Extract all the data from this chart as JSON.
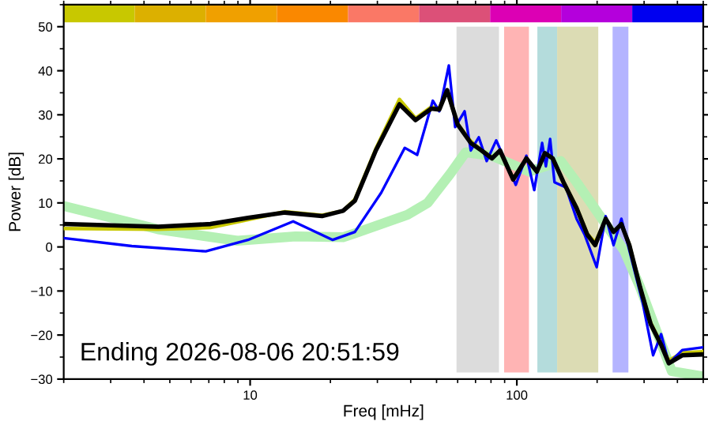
{
  "chart_data": {
    "type": "line",
    "xlabel": "Freq [mHz]",
    "ylabel": "Power [dB]",
    "annotations": [
      "Ending 2026-08-06 20:51:59"
    ],
    "log": "x",
    "xlim": [
      2,
      500
    ],
    "xticks": [
      10,
      100
    ],
    "ylim": [
      -30,
      55
    ],
    "yticks": [
      -30,
      -20,
      -10,
      0,
      10,
      20,
      30,
      40,
      50
    ],
    "grid": false,
    "legend": false,
    "marker": "none",
    "line_style": "solid",
    "bands": [
      {
        "axis": "x",
        "from": 2,
        "to": 3.69,
        "color": "#c8c800"
      },
      {
        "axis": "x",
        "from": 3.69,
        "to": 6.82,
        "color": "#dcb000"
      },
      {
        "axis": "x",
        "from": 6.82,
        "to": 12.6,
        "color": "#f0a000"
      },
      {
        "axis": "x",
        "from": 12.6,
        "to": 23.3,
        "color": "#fa8800"
      },
      {
        "axis": "x",
        "from": 23.3,
        "to": 43.0,
        "color": "#fa7866"
      },
      {
        "axis": "x",
        "from": 43.0,
        "to": 79.4,
        "color": "#dc5078"
      },
      {
        "axis": "x",
        "from": 79.4,
        "to": 146.6,
        "color": "#dc00b4"
      },
      {
        "axis": "x",
        "from": 146.6,
        "to": 270.8,
        "color": "#b400dc"
      },
      {
        "axis": "x",
        "from": 270.8,
        "to": 500,
        "color": "#0000f0"
      },
      {
        "axis": "x",
        "from": 59.4,
        "to": 85.7,
        "color": "#dcdcdc"
      },
      {
        "axis": "x",
        "from": 89.6,
        "to": 111,
        "color": "#ffb4b4"
      },
      {
        "axis": "x",
        "from": 119.4,
        "to": 141.6,
        "color": "#b4dcdc"
      },
      {
        "axis": "x",
        "from": 141.6,
        "to": 202,
        "color": "#dcdcb4"
      },
      {
        "axis": "x",
        "from": 228.6,
        "to": 262,
        "color": "#b4b4ff"
      }
    ],
    "series": [
      {
        "color": "#b4f0b4",
        "x": [
          2.0,
          4.52,
          8.96,
          14.8,
          22.3,
          24.7,
          38.9,
          46.3,
          56.1,
          64.3,
          80.7,
          111.2,
          146.2,
          167.5,
          208.5,
          252.5,
          289.6,
          332,
          381,
          500
        ],
        "values": [
          9.3,
          4.0,
          1.4,
          2.4,
          2.2,
          3.1,
          7.3,
          10,
          16.5,
          21.5,
          20.7,
          17.1,
          19.5,
          14.7,
          6.4,
          -0.8,
          -9.1,
          -18.7,
          -28.2,
          -29.4
        ]
      },
      {
        "color": "#c8c800",
        "x": [
          2.0,
          4.52,
          7.1,
          9.82,
          13.5,
          18.6,
          22.3,
          24.7,
          29.6,
          36.3,
          41.7,
          47.8,
          51.2,
          54.8,
          60.0,
          67.2,
          73.7,
          80.7,
          86.5,
          96.9,
          108.6,
          118.9,
          127.4,
          136.4,
          149.6,
          167.5,
          183.7,
          196.6,
          215.3,
          230.5,
          246.6,
          264.2,
          289.6,
          317.5,
          347.5,
          371.5,
          417,
          495
        ],
        "values": [
          4.2,
          4.0,
          4.4,
          6.2,
          8.0,
          7.2,
          8.2,
          10.8,
          22.3,
          33.5,
          29.2,
          31.8,
          31.5,
          35.2,
          28.0,
          24.0,
          22.0,
          20.3,
          21.8,
          15.5,
          20.0,
          17.0,
          21.0,
          20.0,
          14.8,
          9.0,
          3.0,
          1.0,
          6.2,
          3.6,
          5.0,
          0.6,
          -9.0,
          -17.2,
          -22.0,
          -25.8,
          -24.0,
          -23.8
        ]
      },
      {
        "color": "#0000ff",
        "x": [
          2.0,
          3.6,
          6.82,
          9.82,
          14.5,
          20.4,
          24.7,
          31.0,
          38.0,
          42.3,
          48.4,
          51.2,
          55.6,
          58.7,
          63.7,
          67.2,
          72.0,
          77.1,
          83.7,
          90.6,
          99.1,
          108.6,
          116.2,
          124.4,
          128.5,
          133.3,
          138.4,
          152.8,
          167.5,
          179.5,
          199.3,
          215.3,
          230.5,
          246.6,
          264.2,
          296.5,
          324.3,
          347.5,
          371.5,
          417,
          495
        ],
        "values": [
          2.0,
          0.2,
          -1.0,
          1.6,
          5.8,
          1.6,
          3.4,
          12.3,
          22.5,
          20.9,
          33.2,
          30.8,
          41.2,
          27.2,
          30.8,
          21.9,
          24.9,
          19.5,
          24.2,
          19.5,
          14.1,
          20.7,
          12.9,
          23.6,
          18.3,
          24.5,
          14.7,
          13.5,
          6.4,
          2.8,
          -4.6,
          7.0,
          0.4,
          6.4,
          -0.8,
          -12.7,
          -24.6,
          -19.8,
          -26.4,
          -23.4,
          -22.8
        ]
      },
      {
        "color": "#000000",
        "x": [
          2.0,
          4.52,
          7.1,
          9.82,
          13.5,
          18.6,
          22.3,
          24.7,
          29.6,
          36.3,
          41.7,
          47.8,
          51.2,
          54.8,
          60.0,
          67.2,
          73.7,
          80.7,
          86.5,
          96.9,
          108.6,
          118.9,
          127.4,
          136.4,
          149.6,
          167.5,
          183.7,
          196.6,
          215.3,
          230.5,
          246.6,
          264.2,
          289.6,
          317.5,
          347.5,
          371.5,
          417,
          495
        ],
        "values": [
          5.2,
          4.6,
          5.2,
          6.6,
          7.8,
          7.0,
          8.2,
          10.5,
          21.9,
          32.4,
          28.8,
          31.4,
          31.2,
          35.6,
          27.8,
          23.6,
          21.9,
          20.1,
          21.9,
          15.3,
          20.1,
          17.1,
          21.3,
          20.1,
          14.7,
          8.8,
          2.8,
          0.4,
          6.4,
          3.4,
          5.2,
          0.4,
          -9.1,
          -17.5,
          -22.2,
          -26.4,
          -24.6,
          -24.4
        ]
      }
    ]
  }
}
